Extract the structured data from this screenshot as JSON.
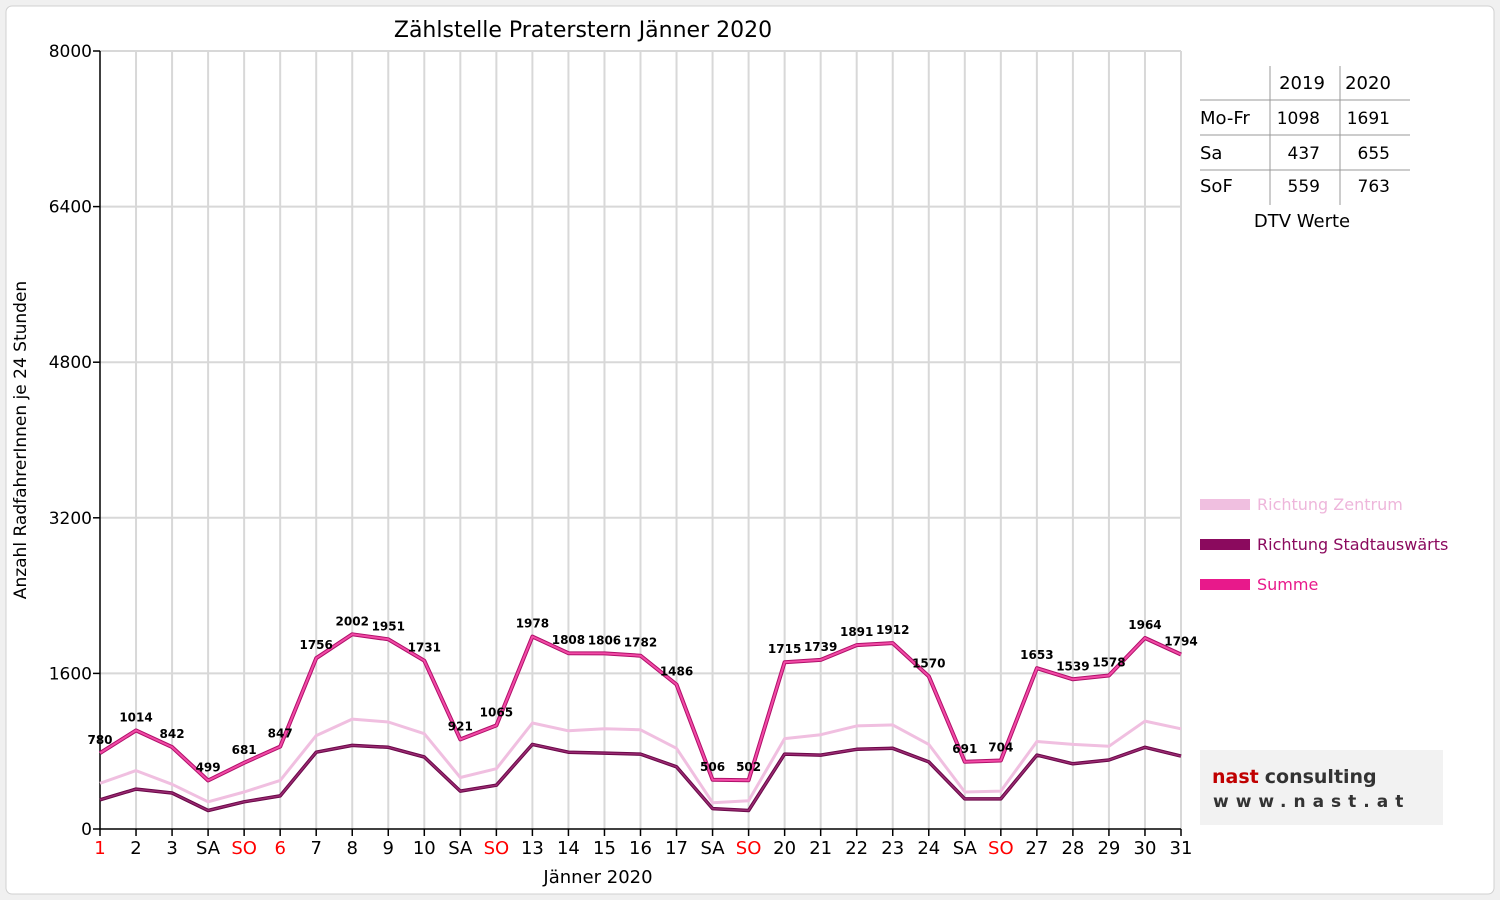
{
  "chart_data": {
    "type": "line",
    "title": "Zählstelle Praterstern Jänner 2020",
    "xlabel": "Jänner 2020",
    "ylabel": "Anzahl RadfahrerInnen je 24 Stunden",
    "ylim": [
      0,
      8000
    ],
    "yticks": [
      "0",
      "1600",
      "3200",
      "4800",
      "6400",
      "8000"
    ],
    "grid": true,
    "legend_position": "right",
    "categories": [
      "1",
      "2",
      "3",
      "SA",
      "SO",
      "6",
      "7",
      "8",
      "9",
      "10",
      "SA",
      "SO",
      "13",
      "14",
      "15",
      "16",
      "17",
      "SA",
      "SO",
      "20",
      "21",
      "22",
      "23",
      "24",
      "SA",
      "SO",
      "27",
      "28",
      "29",
      "30",
      "31"
    ],
    "red_labels": [
      "1",
      "SO",
      "6"
    ],
    "series": [
      {
        "name": "Richtung Zentrum",
        "color": "#f0bfe0",
        "values": [
          470,
          600,
          460,
          280,
          380,
          500,
          960,
          1130,
          1100,
          980,
          530,
          620,
          1090,
          1010,
          1030,
          1020,
          830,
          270,
          290,
          930,
          970,
          1060,
          1070,
          870,
          380,
          390,
          900,
          870,
          850,
          1110,
          1030
        ]
      },
      {
        "name": "Richtung Stadtauswärts",
        "color": "#8b0a5e",
        "values": [
          300,
          410,
          370,
          190,
          280,
          340,
          790,
          860,
          840,
          740,
          390,
          450,
          870,
          790,
          780,
          770,
          640,
          210,
          190,
          770,
          760,
          820,
          830,
          690,
          310,
          310,
          760,
          670,
          710,
          840,
          750
        ]
      },
      {
        "name": "Summe",
        "color": "#e8198b",
        "values": [
          780,
          1014,
          842,
          499,
          681,
          847,
          1756,
          2002,
          1951,
          1731,
          921,
          1065,
          1978,
          1808,
          1806,
          1782,
          1486,
          506,
          502,
          1715,
          1739,
          1891,
          1912,
          1570,
          691,
          704,
          1653,
          1539,
          1578,
          1964,
          1794
        ]
      }
    ],
    "data_labels": [
      "780",
      "1014",
      "842",
      "499",
      "681",
      "847",
      "1756",
      "2002",
      "1951",
      "1731",
      "921",
      "1065",
      "1978",
      "1808",
      "1806",
      "1782",
      "1486",
      "506",
      "502",
      "1715",
      "1739",
      "1891",
      "1912",
      "1570",
      "691",
      "704",
      "1653",
      "1539",
      "1578",
      "1964",
      "1794"
    ]
  },
  "dtv_table": {
    "headers": [
      "2019",
      "2020"
    ],
    "rows": [
      {
        "label": "Mo-Fr",
        "v2019": "1098",
        "v2020": "1691"
      },
      {
        "label": "Sa",
        "v2019": "437",
        "v2020": "655"
      },
      {
        "label": "SoF",
        "v2019": "559",
        "v2020": "763"
      }
    ],
    "caption": "DTV Werte"
  },
  "logo": {
    "word1": "nast",
    "word2": "consulting",
    "url": "www.nast.at"
  },
  "colors": {
    "weekend_red": "#ff0000",
    "grid": "#d8d8d8"
  }
}
